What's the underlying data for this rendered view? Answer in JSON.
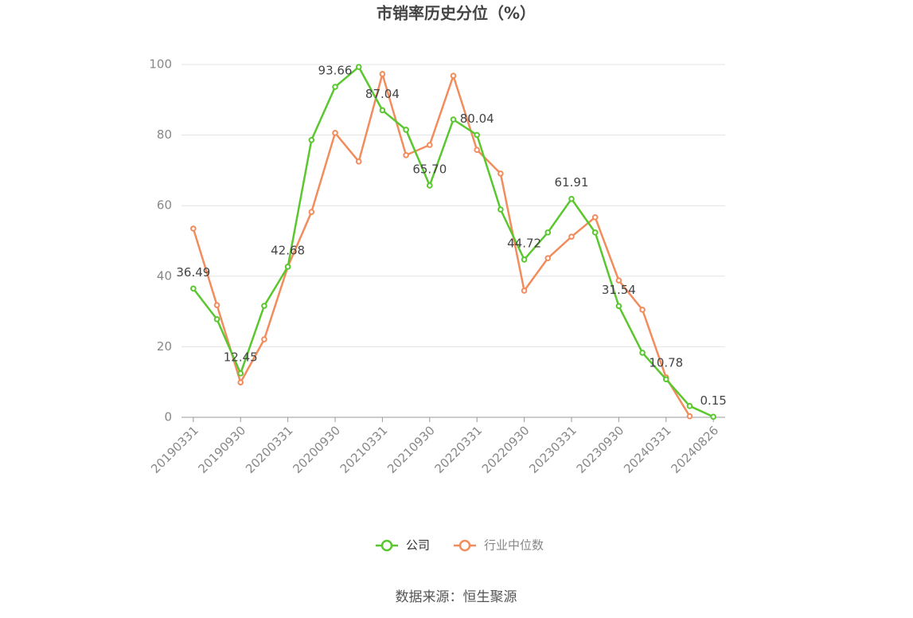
{
  "chart_data": {
    "type": "line",
    "title": "市销率历史分位（%）",
    "categories": [
      "20190331",
      null,
      "20190930",
      null,
      "20200331",
      null,
      "20200930",
      null,
      "20210331",
      null,
      "20210930",
      null,
      "20220331",
      null,
      "20220930",
      null,
      "20230331",
      null,
      "20230930",
      null,
      "20240331",
      null,
      "20240826"
    ],
    "series": [
      {
        "name": "公司",
        "color": "#5ac72f",
        "values": [
          36.49,
          27.8,
          12.45,
          31.6,
          42.68,
          78.6,
          93.66,
          99.3,
          87.04,
          81.5,
          65.7,
          84.4,
          80.04,
          58.9,
          44.72,
          52.4,
          61.91,
          52.4,
          31.54,
          18.3,
          10.78,
          3.2,
          0.15
        ],
        "value_labels": [
          "36.49",
          null,
          "12.45",
          null,
          "42.68",
          null,
          "93.66",
          null,
          "87.04",
          null,
          "65.70",
          null,
          "80.04",
          null,
          "44.72",
          null,
          "61.91",
          null,
          "31.54",
          null,
          "10.78",
          null,
          "0.15"
        ]
      },
      {
        "name": "行业中位数",
        "color": "#f28c5c",
        "values": [
          53.5,
          31.8,
          9.9,
          22.1,
          42.7,
          58.2,
          80.6,
          72.5,
          97.3,
          74.3,
          77.2,
          96.8,
          75.8,
          69.1,
          35.9,
          45.1,
          51.2,
          56.7,
          38.8,
          30.5,
          11.3,
          0.3,
          null
        ]
      }
    ],
    "ylim": [
      0,
      100
    ],
    "yticks": [
      0,
      20,
      40,
      60,
      80,
      100
    ],
    "grid": true,
    "legend": "bottom",
    "source": "数据来源：恒生聚源"
  }
}
